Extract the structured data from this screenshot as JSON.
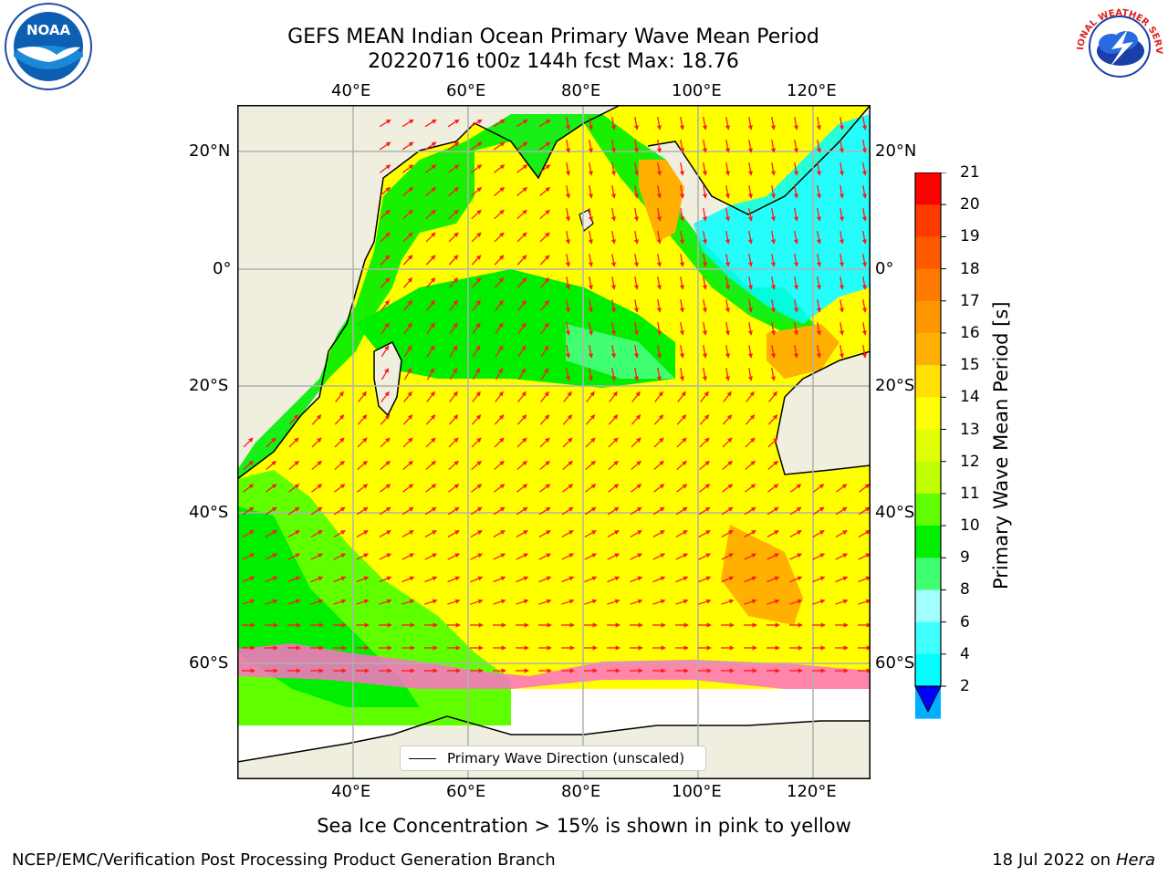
{
  "header": {
    "title_line1": "GEFS MEAN Indian Ocean Primary Wave Mean Period",
    "title_line2": "20220716 t00z 144h fcst   Max: 18.76"
  },
  "map": {
    "lon_labels": [
      "40°E",
      "60°E",
      "80°E",
      "100°E",
      "120°E"
    ],
    "lat_labels": [
      "20°N",
      "0°",
      "20°S",
      "40°S",
      "60°S"
    ],
    "legend_label": "Primary Wave Direction (unscaled)",
    "extent": {
      "lon_min": 20,
      "lon_max": 130,
      "lat_min": -70,
      "lat_max": 28
    }
  },
  "colorbar": {
    "label": "Primary Wave Mean Period [s]",
    "ticks": [
      "21",
      "20",
      "19",
      "18",
      "17",
      "16",
      "15",
      "14",
      "13",
      "12",
      "11",
      "10",
      "9",
      "8",
      "6",
      "4",
      "2"
    ],
    "colors": [
      "#ff0000",
      "#ff3a00",
      "#ff5a00",
      "#ff7a00",
      "#ff9600",
      "#ffb000",
      "#ffe000",
      "#ffff00",
      "#e0ff00",
      "#c0ff00",
      "#60ff00",
      "#00ee00",
      "#40ff70",
      "#a0ffff",
      "#40ffff",
      "#00ffff",
      "#00b0ff",
      "#0040ff"
    ]
  },
  "footer": {
    "ice_note": "Sea Ice Concentration > 15% is shown in pink to yellow",
    "credit": "NCEP/EMC/Verification Post Processing Product Generation Branch",
    "date": "18 Jul 2022 on ",
    "machine": "Hera"
  },
  "logos": {
    "left": "noaa-logo",
    "left_text": "NOAA",
    "right": "nws-logo",
    "right_text": "NATIONAL WEATHER SERVICE"
  }
}
